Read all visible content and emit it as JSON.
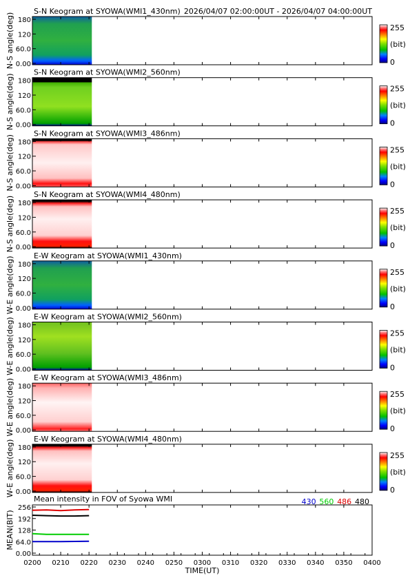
{
  "header": {
    "time_range": "2026/04/07 02:00:00UT - 2026/04/07 04:00:00UT"
  },
  "colorbar": {
    "max_label": "255",
    "unit_label": "(bit)",
    "min_label": "0"
  },
  "chart_data": {
    "type": "heatmap",
    "x_range": [
      "0200",
      "0400"
    ],
    "data_end": "0221",
    "x_ticks": [
      "0200",
      "0210",
      "0220",
      "0230",
      "0240",
      "0250",
      "0300",
      "0310",
      "0320",
      "0330",
      "0340",
      "0350",
      "0400"
    ],
    "x_label": "TIME(UT)",
    "y_ticks": [
      "0.00",
      "60.0",
      "120",
      "180"
    ],
    "y_range": [
      0,
      180
    ],
    "panels": [
      {
        "title": "S-N Keogram at SYOWA(WMI1_430nm)",
        "ylabel": "N-S angle(deg)",
        "style": "g430"
      },
      {
        "title": "S-N Keogram at SYOWA(WMI2_560nm)",
        "ylabel": "N-S angle(deg)",
        "style": "g560"
      },
      {
        "title": "S-N Keogram at SYOWA(WMI3_486nm)",
        "ylabel": "N-S angle(deg)",
        "style": "r486"
      },
      {
        "title": "S-N Keogram at SYOWA(WMI4_480nm)",
        "ylabel": "N-S angle(deg)",
        "style": "r480"
      },
      {
        "title": "E-W Keogram at SYOWA(WMI1_430nm)",
        "ylabel": "W-E angle(deg)",
        "style": "g430"
      },
      {
        "title": "E-W Keogram at SYOWA(WMI2_560nm)",
        "ylabel": "W-E angle(deg)",
        "style": "g560ew"
      },
      {
        "title": "E-W Keogram at SYOWA(WMI3_486nm)",
        "ylabel": "W-E angle(deg)",
        "style": "r486ew"
      },
      {
        "title": "E-W Keogram at SYOWA(WMI4_480nm)",
        "ylabel": "W-E angle(deg)",
        "style": "r480"
      }
    ],
    "mean": {
      "title": "Mean intensity in FOV of Syowa WMI",
      "ylabel": "MEAN(BIT)",
      "y_ticks": [
        "0.00",
        "64.0",
        "128",
        "192",
        "256"
      ],
      "y_range": [
        0,
        256
      ],
      "series": [
        {
          "name": "430",
          "color": "#0000cc",
          "values": [
            64,
            64,
            64,
            65,
            66
          ]
        },
        {
          "name": "560",
          "color": "#00cc00",
          "values": [
            108,
            104,
            104,
            104,
            104
          ]
        },
        {
          "name": "486",
          "color": "#dd0000",
          "values": [
            238,
            240,
            236,
            240,
            242
          ]
        },
        {
          "name": "480",
          "color": "#000000",
          "values": [
            210,
            208,
            206,
            206,
            208
          ]
        }
      ],
      "x": [
        "0200",
        "0205",
        "0210",
        "0215",
        "0220"
      ]
    }
  }
}
